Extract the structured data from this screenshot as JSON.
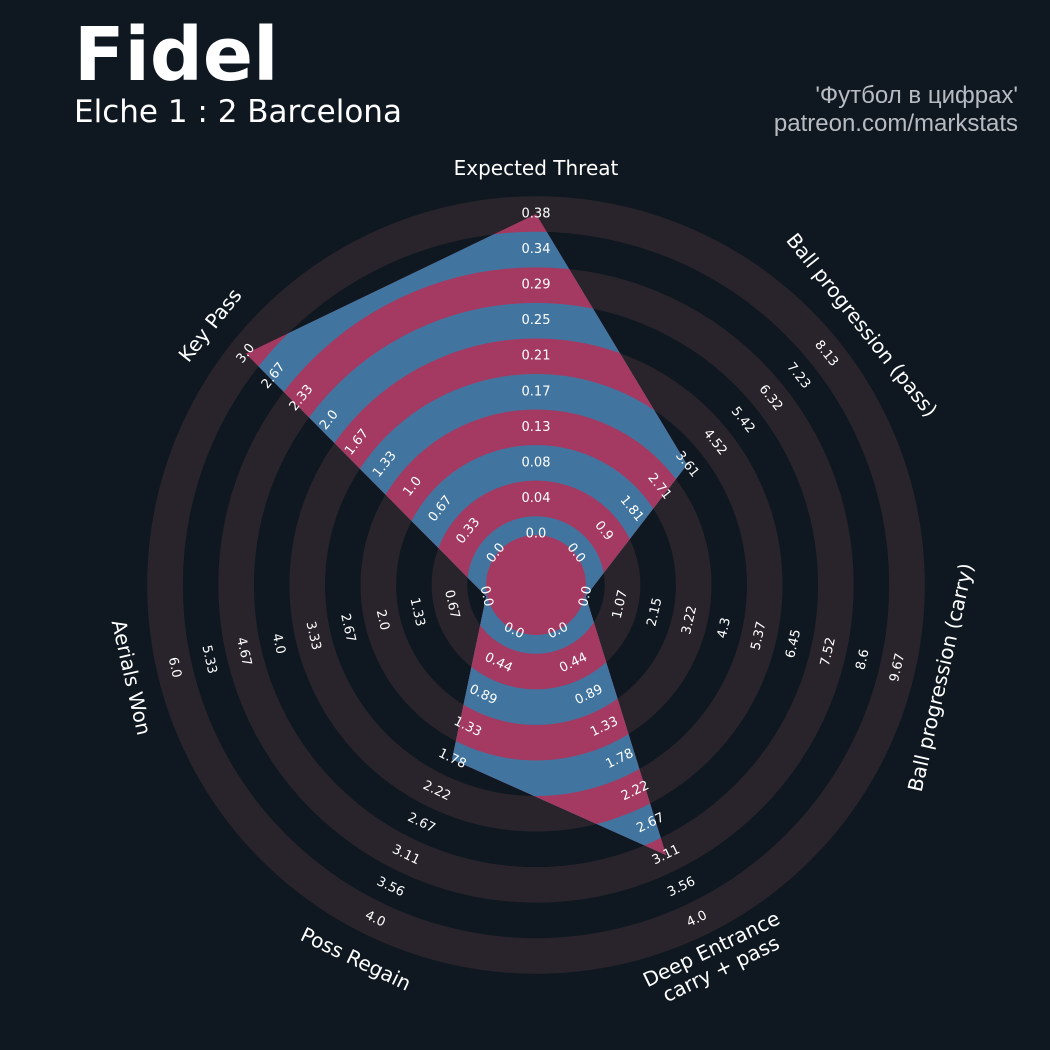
{
  "header": {
    "title": "Fidel",
    "subtitle": "Elche 1 : 2 Barcelona",
    "credit_line1": "'Футбол в цифрах'",
    "credit_line2": "patreon.com/markstats"
  },
  "colors": {
    "background": "#0f1820",
    "ring_fill": "#29242b",
    "player_blue": "#4175a0",
    "player_red": "#a43a62",
    "text": "#ffffff",
    "credit": "#b8bcc2"
  },
  "chart_data": {
    "type": "radar",
    "params": [
      {
        "label": [
          "Expected Threat"
        ],
        "min": 0.0,
        "max": 0.38,
        "ticks": [
          "0.0",
          "0.04",
          "0.08",
          "0.13",
          "0.17",
          "0.21",
          "0.25",
          "0.29",
          "0.34",
          "0.38"
        ],
        "value": 0.38
      },
      {
        "label": [
          "Ball progression (pass)"
        ],
        "min": 0.0,
        "max": 8.13,
        "ticks": [
          "0.0",
          "0.9",
          "1.81",
          "2.71",
          "3.61",
          "4.52",
          "5.42",
          "6.32",
          "7.23",
          "8.13"
        ],
        "value": 3.61
      },
      {
        "label": [
          "Ball progression (carry)"
        ],
        "min": 0.0,
        "max": 9.67,
        "ticks": [
          "0.0",
          "1.07",
          "2.15",
          "3.22",
          "4.3",
          "5.37",
          "6.45",
          "7.52",
          "8.6",
          "9.67"
        ],
        "value": 0.0
      },
      {
        "label": [
          "Deep Entrance",
          "carry + pass"
        ],
        "min": 0.0,
        "max": 4.0,
        "ticks": [
          "0.0",
          "0.44",
          "0.89",
          "1.33",
          "1.78",
          "2.22",
          "2.67",
          "3.11",
          "3.56",
          "4.0"
        ],
        "value": 3.11
      },
      {
        "label": [
          "Poss Regain"
        ],
        "min": 0.0,
        "max": 4.0,
        "ticks": [
          "0.0",
          "0.44",
          "0.89",
          "1.33",
          "1.78",
          "2.22",
          "2.67",
          "3.11",
          "3.56",
          "4.0"
        ],
        "value": 1.78
      },
      {
        "label": [
          "Aerials Won"
        ],
        "min": 0.0,
        "max": 6.0,
        "ticks": [
          "0.0",
          "0.67",
          "1.33",
          "2.0",
          "2.67",
          "3.33",
          "4.0",
          "4.67",
          "5.33",
          "6.0"
        ],
        "value": 0.0
      },
      {
        "label": [
          "Key Pass"
        ],
        "min": 0.0,
        "max": 3.0,
        "ticks": [
          "0.0",
          "0.33",
          "0.67",
          "1.0",
          "1.33",
          "1.67",
          "2.0",
          "2.33",
          "2.67",
          "3.0"
        ],
        "value": 3.0
      }
    ]
  }
}
